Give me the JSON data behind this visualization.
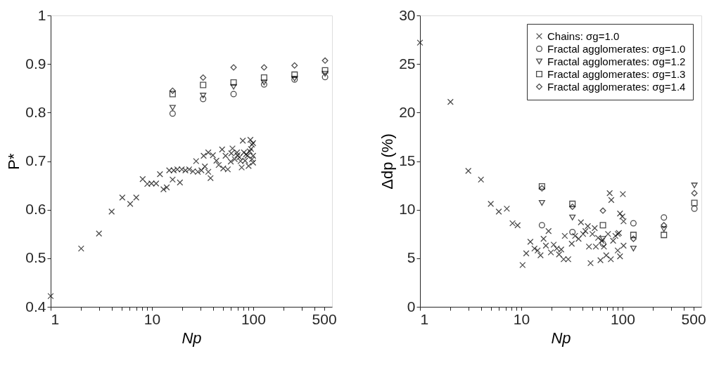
{
  "chart_data": [
    {
      "type": "scatter",
      "xlabel": "Np",
      "ylabel": "P*",
      "log": "x",
      "grid": false,
      "xlim": [
        1,
        600
      ],
      "xticks": [
        1,
        {
          "value": 2,
          "label": null
        },
        {
          "value": 3,
          "label": null
        },
        {
          "value": 4,
          "label": null
        },
        {
          "value": 5,
          "label": null
        },
        {
          "value": 6,
          "label": null
        },
        {
          "value": 7,
          "label": null
        },
        {
          "value": 8,
          "label": null
        },
        {
          "value": 9,
          "label": null
        },
        10,
        {
          "value": 20,
          "label": null
        },
        {
          "value": 30,
          "label": null
        },
        {
          "value": 40,
          "label": null
        },
        {
          "value": 50,
          "label": null
        },
        {
          "value": 60,
          "label": null
        },
        {
          "value": 70,
          "label": null
        },
        {
          "value": 80,
          "label": null
        },
        {
          "value": 90,
          "label": null
        },
        100,
        {
          "value": 200,
          "label": null
        },
        {
          "value": 300,
          "label": null
        },
        {
          "value": 400,
          "label": null
        },
        500
      ],
      "ylim": [
        0.4,
        1
      ],
      "yticks": [
        0.4,
        0.5,
        0.6,
        0.7,
        0.8,
        0.9,
        1
      ],
      "series": [
        {
          "marker": "cross",
          "color": "#000000",
          "x": [
            1,
            2,
            3,
            4,
            5.1,
            6.1,
            7,
            8.1,
            9,
            9.9,
            11,
            12,
            13,
            14,
            14.8,
            16,
            16.4,
            17.8,
            18.9,
            19.7,
            21.4,
            23.3,
            25.4,
            27.3,
            28.4,
            30.8,
            33.3,
            36,
            37.9,
            32.4,
            36,
            40,
            43.3,
            45.6,
            49.3,
            50.6,
            53.3,
            56.1,
            60.7,
            62.4,
            65.7,
            69.2,
            73,
            76.9,
            78.9,
            81,
            83.1,
            87.6,
            90,
            92.3,
            93.8,
            97.2,
            97.2,
            99.7,
            99.7,
            99.7,
            85,
            70,
            95,
            60,
            75
          ],
          "values": [
            0.422,
            0.52,
            0.551,
            0.596,
            0.625,
            0.612,
            0.625,
            0.663,
            0.653,
            0.654,
            0.654,
            0.673,
            0.642,
            0.646,
            0.681,
            0.662,
            0.681,
            0.683,
            0.656,
            0.683,
            0.681,
            0.683,
            0.679,
            0.7,
            0.678,
            0.681,
            0.689,
            0.678,
            0.665,
            0.711,
            0.718,
            0.712,
            0.701,
            0.692,
            0.724,
            0.685,
            0.711,
            0.683,
            0.716,
            0.726,
            0.704,
            0.718,
            0.708,
            0.687,
            0.742,
            0.718,
            0.701,
            0.711,
            0.69,
            0.72,
            0.744,
            0.734,
            0.704,
            0.711,
            0.697,
            0.737,
            0.714,
            0.712,
            0.725,
            0.699,
            0.7
          ]
        },
        {
          "marker": "circle",
          "color": "#000000",
          "x": [
            16,
            32,
            64,
            128,
            256,
            512
          ],
          "values": [
            0.798,
            0.828,
            0.838,
            0.858,
            0.868,
            0.873
          ]
        },
        {
          "marker": "triangle-down",
          "color": "#000000",
          "x": [
            16,
            32,
            64,
            128,
            256,
            512
          ],
          "values": [
            0.81,
            0.835,
            0.853,
            0.862,
            0.87,
            0.88
          ]
        },
        {
          "marker": "square",
          "color": "#000000",
          "x": [
            16,
            32,
            64,
            128,
            256,
            512
          ],
          "values": [
            0.838,
            0.857,
            0.862,
            0.872,
            0.878,
            0.887
          ]
        },
        {
          "marker": "diamond",
          "color": "#000000",
          "x": [
            16,
            32,
            64,
            128,
            256,
            512
          ],
          "values": [
            0.845,
            0.872,
            0.893,
            0.893,
            0.897,
            0.907
          ]
        }
      ]
    },
    {
      "type": "scatter",
      "xlabel": "Np",
      "ylabel": "Δdp (%)",
      "log": "x",
      "grid": false,
      "legend": "top right",
      "xlim": [
        1,
        600
      ],
      "xticks": [
        1,
        {
          "value": 2,
          "label": null
        },
        {
          "value": 3,
          "label": null
        },
        {
          "value": 4,
          "label": null
        },
        {
          "value": 5,
          "label": null
        },
        {
          "value": 6,
          "label": null
        },
        {
          "value": 7,
          "label": null
        },
        {
          "value": 8,
          "label": null
        },
        {
          "value": 9,
          "label": null
        },
        10,
        {
          "value": 20,
          "label": null
        },
        {
          "value": 30,
          "label": null
        },
        {
          "value": 40,
          "label": null
        },
        {
          "value": 50,
          "label": null
        },
        {
          "value": 60,
          "label": null
        },
        {
          "value": 70,
          "label": null
        },
        {
          "value": 80,
          "label": null
        },
        {
          "value": 90,
          "label": null
        },
        100,
        {
          "value": 200,
          "label": null
        },
        {
          "value": 300,
          "label": null
        },
        {
          "value": 400,
          "label": null
        },
        500
      ],
      "ylim": [
        0,
        30
      ],
      "yticks": [
        0,
        5,
        10,
        15,
        20,
        25,
        30
      ],
      "series": [
        {
          "name": "Chains: σg=1.0",
          "marker": "cross",
          "color": "#000000",
          "x": [
            1,
            2,
            3,
            4,
            5,
            6,
            7.2,
            8.2,
            9.2,
            10.3,
            11.2,
            12.3,
            13.5,
            14.5,
            15.5,
            16.6,
            17.5,
            18.6,
            19.6,
            20.9,
            22.4,
            23.6,
            24.8,
            26.2,
            26.9,
            29.1,
            31.5,
            34,
            36.8,
            38.8,
            40.8,
            43,
            45.4,
            46.6,
            48.3,
            50.4,
            53.1,
            54.5,
            57.4,
            60.5,
            62.1,
            65.5,
            69,
            71.9,
            74.6,
            76.6,
            77.4,
            80.7,
            85,
            89.6,
            92,
            94.4,
            94.4,
            99.5,
            100.7,
            102.3,
            102.3,
            89.6
          ],
          "values": [
            27.2,
            21.1,
            14.0,
            13.1,
            10.6,
            9.8,
            10.1,
            8.6,
            8.4,
            4.3,
            5.5,
            6.7,
            6.0,
            5.8,
            5.3,
            7.0,
            6.3,
            7.8,
            5.6,
            6.4,
            6.0,
            5.4,
            5.9,
            4.9,
            7.3,
            4.9,
            6.5,
            7.3,
            7.0,
            8.7,
            7.5,
            7.8,
            8.3,
            6.2,
            4.5,
            7.5,
            8.1,
            6.2,
            7.1,
            4.8,
            6.8,
            6.2,
            5.3,
            7.5,
            11.7,
            4.9,
            11.0,
            6.8,
            7.3,
            5.8,
            7.6,
            5.2,
            9.6,
            9.3,
            11.6,
            8.8,
            6.3,
            7.5
          ]
        },
        {
          "name": "Fractal agglomerates: σg=1.0",
          "marker": "circle",
          "color": "#000000",
          "x": [
            16,
            32,
            64,
            128,
            256,
            512
          ],
          "values": [
            8.4,
            7.7,
            6.5,
            8.6,
            9.2,
            10.1
          ]
        },
        {
          "name": "Fractal agglomerates: σg=1.2",
          "marker": "triangle-down",
          "color": "#000000",
          "x": [
            16,
            32,
            64,
            128,
            256,
            512
          ],
          "values": [
            10.7,
            9.2,
            7.0,
            6.0,
            8.0,
            12.5
          ]
        },
        {
          "name": "Fractal agglomerates: σg=1.3",
          "marker": "square",
          "color": "#000000",
          "x": [
            16,
            32,
            64,
            128,
            256,
            512
          ],
          "values": [
            12.4,
            10.6,
            8.4,
            7.4,
            7.4,
            10.7
          ]
        },
        {
          "name": "Fractal agglomerates: σg=1.4",
          "marker": "diamond",
          "color": "#000000",
          "x": [
            16,
            32,
            64,
            128,
            256,
            512
          ],
          "values": [
            12.2,
            10.3,
            9.9,
            7.0,
            8.4,
            11.7
          ]
        }
      ]
    }
  ]
}
